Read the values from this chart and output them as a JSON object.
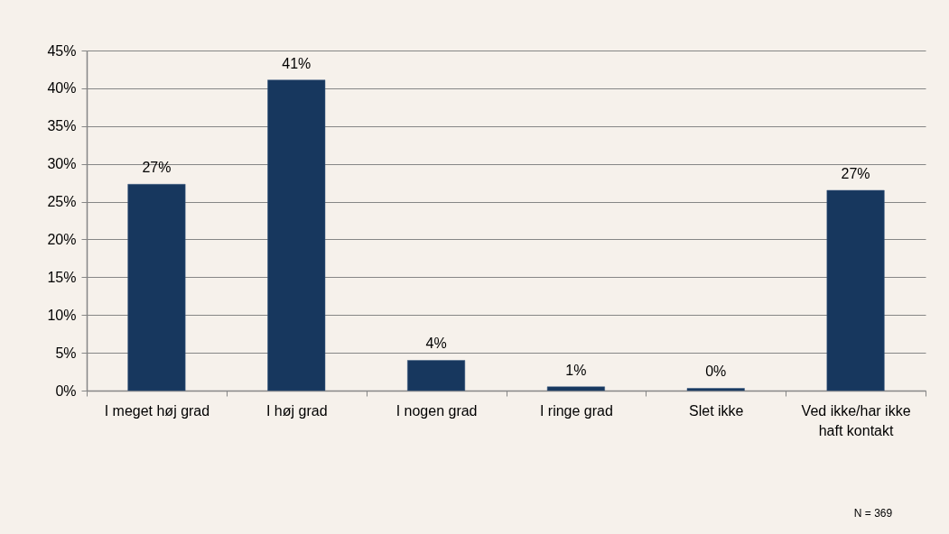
{
  "chart_data": {
    "type": "bar",
    "categories": [
      "I meget høj grad",
      "I høj grad",
      "I nogen grad",
      "I ringe grad",
      "Slet ikke",
      "Ved ikke/har ikke haft kontakt"
    ],
    "values": [
      27.3,
      41.1,
      4.0,
      0.5,
      0.3,
      26.5
    ],
    "value_labels": [
      "27%",
      "41%",
      "4%",
      "1%",
      "0%",
      "27%"
    ],
    "color": "#17375e",
    "ylim": [
      0,
      45
    ],
    "yticks": [
      {
        "value": 0,
        "label": "0%"
      },
      {
        "value": 5,
        "label": "5%"
      },
      {
        "value": 10,
        "label": "10%"
      },
      {
        "value": 15,
        "label": "15%"
      },
      {
        "value": 20,
        "label": "20%"
      },
      {
        "value": 25,
        "label": "25%"
      },
      {
        "value": 30,
        "label": "30%"
      },
      {
        "value": 35,
        "label": "35%"
      },
      {
        "value": 40,
        "label": "40%"
      },
      {
        "value": 45,
        "label": "45%"
      }
    ],
    "grid": "y",
    "annotations": [
      "N = 369"
    ]
  }
}
